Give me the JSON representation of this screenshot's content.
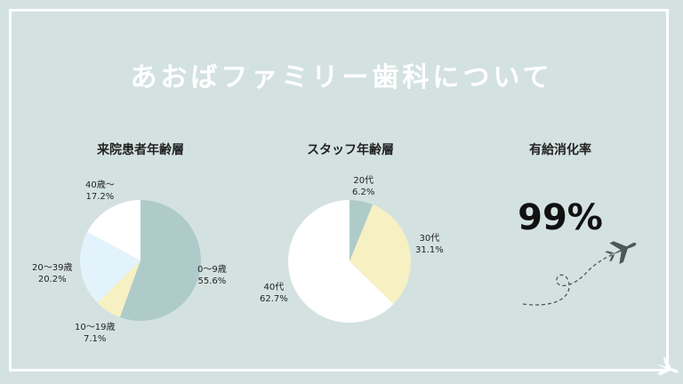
{
  "title": "あおばファミリー歯科について",
  "sections": [
    {
      "title": "来院患者年齢層"
    },
    {
      "title": "スタッフ年齢層"
    },
    {
      "title": "有給消化率"
    }
  ],
  "paid_leave": {
    "value_text": "99%",
    "value": 99
  },
  "colors": {
    "background": "#d3e2e0",
    "teal": "#aecbca",
    "yellow": "#f7f0c3",
    "lightblue": "#e3f3fb",
    "white": "#ffffff"
  },
  "icons": [
    "airplane-icon",
    "airplane-corner-icon",
    "dashed-flight-path"
  ],
  "chart_data": [
    {
      "type": "pie",
      "title": "来院患者年齢層",
      "slices": [
        {
          "label": "0〜9歳",
          "value": 55.6,
          "value_text": "55.6%",
          "color": "#aecbca"
        },
        {
          "label": "10〜19歳",
          "value": 7.1,
          "value_text": "7.1%",
          "color": "#f7f0c3"
        },
        {
          "label": "20〜39歳",
          "value": 20.2,
          "value_text": "20.2%",
          "color": "#e3f3fb"
        },
        {
          "label": "40歳〜",
          "value": 17.2,
          "value_text": "17.2%",
          "color": "#ffffff"
        }
      ]
    },
    {
      "type": "pie",
      "title": "スタッフ年齢層",
      "slices": [
        {
          "label": "20代",
          "value": 6.2,
          "value_text": "6.2%",
          "color": "#aecbca"
        },
        {
          "label": "30代",
          "value": 31.1,
          "value_text": "31.1%",
          "color": "#f7f0c3"
        },
        {
          "label": "40代",
          "value": 62.7,
          "value_text": "62.7%",
          "color": "#ffffff"
        }
      ]
    }
  ]
}
